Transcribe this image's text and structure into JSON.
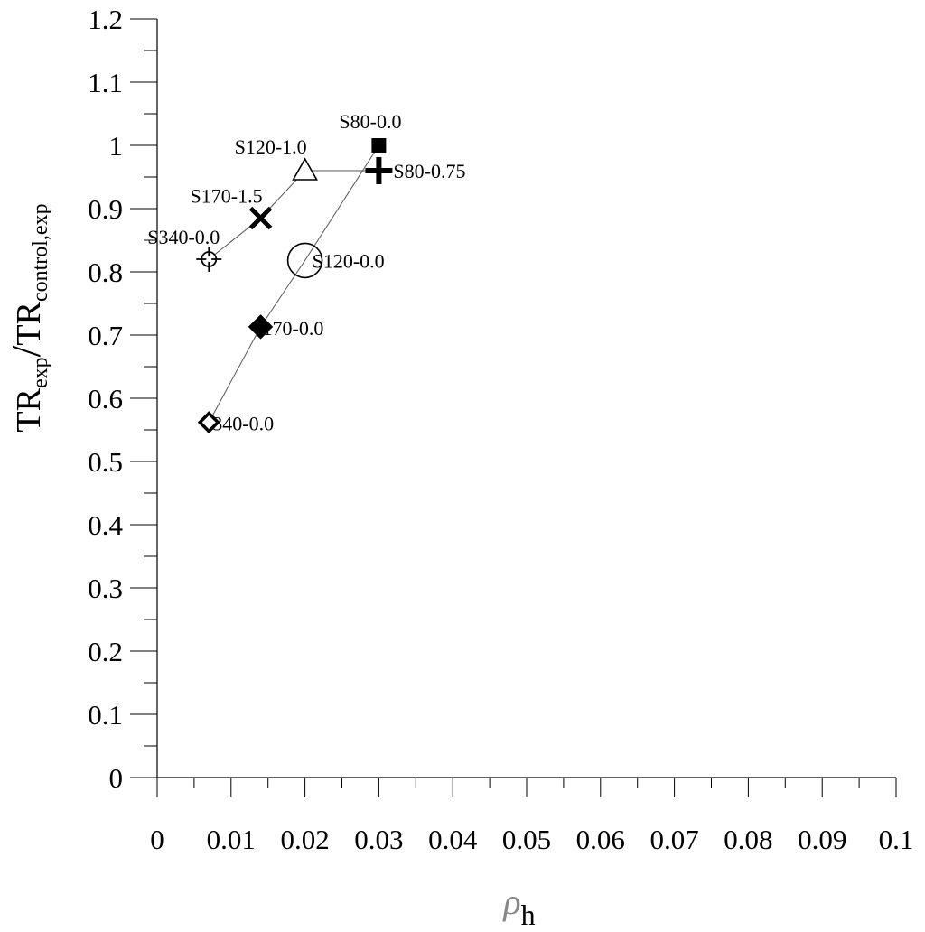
{
  "chart_data": {
    "type": "scatter",
    "title": "",
    "xlabel": {
      "symbol": "ρ",
      "subscript": "h"
    },
    "ylabel": {
      "numerator": "TR",
      "numerator_sub": "exp",
      "slash": "/",
      "denominator": "TR",
      "denominator_sub": "control,exp"
    },
    "xlim": [
      0,
      0.1
    ],
    "ylim": [
      0,
      1.2
    ],
    "x_ticks": [
      "0",
      "0.01",
      "0.02",
      "0.03",
      "0.04",
      "0.05",
      "0.06",
      "0.07",
      "0.08",
      "0.09",
      "0.1"
    ],
    "y_ticks": [
      "0",
      "0.1",
      "0.2",
      "0.3",
      "0.4",
      "0.5",
      "0.6",
      "0.7",
      "0.8",
      "0.9",
      "1",
      "1.1",
      "1.2"
    ],
    "grid": false,
    "legend": "none",
    "series": [
      {
        "line_color": "#555555",
        "points": [
          {
            "label": "S340-0.0",
            "marker": "crosshair-circle",
            "x": 0.007,
            "y": 0.82
          },
          {
            "label": "S170-1.5",
            "marker": "x-cross",
            "x": 0.014,
            "y": 0.885
          },
          {
            "label": "S120-1.0",
            "marker": "open-triangle",
            "x": 0.02,
            "y": 0.96
          },
          {
            "label": "S80-0.75",
            "marker": "plus",
            "x": 0.03,
            "y": 0.96
          }
        ]
      },
      {
        "line_color": "#555555",
        "points": [
          {
            "label": "340-0.0",
            "marker": "open-diamond",
            "x": 0.007,
            "y": 0.562
          },
          {
            "label": "170-0.0",
            "marker": "filled-diamond",
            "x": 0.014,
            "y": 0.713
          },
          {
            "label": "S120-0.0",
            "marker": "open-circle",
            "x": 0.02,
            "y": 0.818
          },
          {
            "label": "S80-0.0",
            "marker": "filled-square",
            "x": 0.03,
            "y": 1.0
          }
        ]
      }
    ]
  }
}
